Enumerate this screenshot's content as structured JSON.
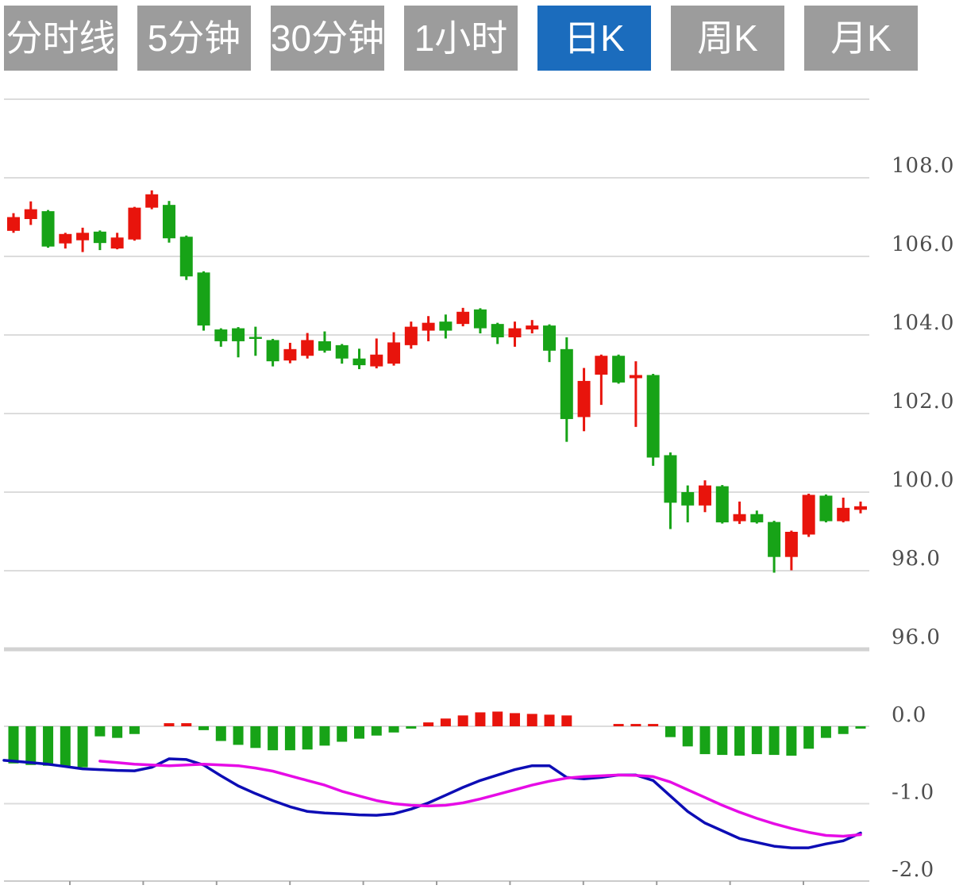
{
  "toolbar": {
    "tabs": [
      {
        "key": "timeshare-line",
        "label": "分时线",
        "active": false
      },
      {
        "key": "5-minute",
        "label": "5分钟",
        "active": false
      },
      {
        "key": "30-minute",
        "label": "30分钟",
        "active": false
      },
      {
        "key": "1-hour",
        "label": "1小时",
        "active": false
      },
      {
        "key": "daily-k",
        "label": "日K",
        "active": true
      },
      {
        "key": "weekly-k",
        "label": "周K",
        "active": false
      },
      {
        "key": "monthly-k",
        "label": "月K",
        "active": false
      }
    ]
  },
  "colors": {
    "up": "#e8140c",
    "down": "#17a317",
    "dif_line": "#0d0db5",
    "dea_line": "#e60ce6",
    "grid": "#dcdcdc",
    "grid_emphasis": "#d2d2d2",
    "axis_line": "#cbcbcb",
    "axis_tick": "#9a9a9a",
    "axis_text": "#4d4d4d",
    "tab_bg": "#9c9c9c",
    "tab_active_bg": "#1b6cbd",
    "tab_text": "#ffffff"
  },
  "chart_data": [
    {
      "type": "candlestick",
      "title": "",
      "legend_position": "none",
      "grid": true,
      "y_axis": {
        "side": "right",
        "range": [
          95.2,
          110.0
        ],
        "ticks": [
          {
            "value": 110,
            "label": ""
          },
          {
            "value": 108,
            "label": "108.0"
          },
          {
            "value": 106,
            "label": "106.0"
          },
          {
            "value": 104,
            "label": "104.0"
          },
          {
            "value": 102,
            "label": "102.0"
          },
          {
            "value": 100,
            "label": "100.0"
          },
          {
            "value": 98,
            "label": "98.0"
          },
          {
            "value": 96,
            "label": "96.0",
            "emphasis": true
          }
        ]
      },
      "color_convention": "chinese (red = up, green = down)",
      "candles_ohlc": [
        [
          106.65,
          107.1,
          106.6,
          107.0
        ],
        [
          106.95,
          107.4,
          106.8,
          107.2
        ],
        [
          107.15,
          107.18,
          106.22,
          106.25
        ],
        [
          106.33,
          106.6,
          106.2,
          106.57
        ],
        [
          106.41,
          106.73,
          106.11,
          106.6
        ],
        [
          106.63,
          106.66,
          106.16,
          106.34
        ],
        [
          106.2,
          106.6,
          106.18,
          106.48
        ],
        [
          106.43,
          107.26,
          106.4,
          107.24
        ],
        [
          107.24,
          107.68,
          107.2,
          107.58
        ],
        [
          107.31,
          107.41,
          106.35,
          106.46
        ],
        [
          106.5,
          106.53,
          105.4,
          105.49
        ],
        [
          105.59,
          105.62,
          104.11,
          104.24
        ],
        [
          104.14,
          104.17,
          103.7,
          103.84
        ],
        [
          104.17,
          104.2,
          103.43,
          103.84
        ],
        [
          103.95,
          104.21,
          103.47,
          103.92
        ],
        [
          103.87,
          103.9,
          103.2,
          103.33
        ],
        [
          103.35,
          103.8,
          103.28,
          103.64
        ],
        [
          103.47,
          104.05,
          103.4,
          103.87
        ],
        [
          103.84,
          104.09,
          103.55,
          103.6
        ],
        [
          103.74,
          103.77,
          103.27,
          103.4
        ],
        [
          103.4,
          103.65,
          103.13,
          103.23
        ],
        [
          103.2,
          103.91,
          103.15,
          103.5
        ],
        [
          103.27,
          104.07,
          103.22,
          103.81
        ],
        [
          103.74,
          104.34,
          103.65,
          104.21
        ],
        [
          104.11,
          104.48,
          103.84,
          104.31
        ],
        [
          104.34,
          104.52,
          103.91,
          104.11
        ],
        [
          104.28,
          104.69,
          104.22,
          104.59
        ],
        [
          104.65,
          104.68,
          104.04,
          104.17
        ],
        [
          104.28,
          104.31,
          103.77,
          103.94
        ],
        [
          103.94,
          104.34,
          103.7,
          104.17
        ],
        [
          104.14,
          104.38,
          104.04,
          104.24
        ],
        [
          104.24,
          104.27,
          103.31,
          103.6
        ],
        [
          103.64,
          103.94,
          101.28,
          101.86
        ],
        [
          101.91,
          103.16,
          101.55,
          102.83
        ],
        [
          102.99,
          103.5,
          102.22,
          103.47
        ],
        [
          103.47,
          103.5,
          102.76,
          102.79
        ],
        [
          102.9,
          103.33,
          101.66,
          102.98
        ],
        [
          102.98,
          103.01,
          100.67,
          100.88
        ],
        [
          100.94,
          101.01,
          99.06,
          99.73
        ],
        [
          100.0,
          100.17,
          99.23,
          99.66
        ],
        [
          99.66,
          100.3,
          99.49,
          100.17
        ],
        [
          100.15,
          100.18,
          99.2,
          99.23
        ],
        [
          99.26,
          99.76,
          99.19,
          99.44
        ],
        [
          99.44,
          99.53,
          99.2,
          99.23
        ],
        [
          99.24,
          99.27,
          97.95,
          98.35
        ],
        [
          98.35,
          99.02,
          98.01,
          98.99
        ],
        [
          98.92,
          99.96,
          98.86,
          99.93
        ],
        [
          99.91,
          99.94,
          99.23,
          99.26
        ],
        [
          99.26,
          99.86,
          99.23,
          99.6
        ],
        [
          99.55,
          99.76,
          99.46,
          99.64
        ]
      ]
    },
    {
      "type": "bar",
      "name": "MACD",
      "grid": true,
      "y_axis": {
        "side": "right",
        "range": [
          -2.0,
          0.25
        ],
        "ticks": [
          {
            "value": 0,
            "label": "0.0"
          },
          {
            "value": -1,
            "label": "-1.0"
          },
          {
            "value": -2,
            "label": "-2.0",
            "axis": true
          }
        ]
      },
      "histogram": [
        -0.48,
        -0.5,
        -0.51,
        -0.52,
        -0.53,
        -0.13,
        -0.15,
        -0.1,
        0,
        0.04,
        0.04,
        -0.05,
        -0.19,
        -0.24,
        -0.28,
        -0.31,
        -0.31,
        -0.3,
        -0.25,
        -0.2,
        -0.16,
        -0.12,
        -0.08,
        -0.03,
        0.05,
        0.1,
        0.14,
        0.18,
        0.19,
        0.17,
        0.16,
        0.15,
        0.14,
        0,
        0,
        0.03,
        0.03,
        0.03,
        -0.14,
        -0.26,
        -0.36,
        -0.37,
        -0.38,
        -0.36,
        -0.37,
        -0.38,
        -0.29,
        -0.15,
        -0.1,
        -0.03
      ],
      "series": [
        {
          "name": "DIF",
          "start_index": 0,
          "edge_value": -0.44,
          "values": [
            -0.45,
            -0.47,
            -0.49,
            -0.52,
            -0.55,
            -0.56,
            -0.57,
            -0.575,
            -0.53,
            -0.42,
            -0.43,
            -0.5,
            -0.64,
            -0.77,
            -0.87,
            -0.96,
            -1.04,
            -1.1,
            -1.12,
            -1.13,
            -1.145,
            -1.15,
            -1.13,
            -1.07,
            -0.99,
            -0.89,
            -0.79,
            -0.7,
            -0.63,
            -0.56,
            -0.51,
            -0.51,
            -0.66,
            -0.68,
            -0.66,
            -0.63,
            -0.63,
            -0.7,
            -0.9,
            -1.1,
            -1.25,
            -1.35,
            -1.45,
            -1.5,
            -1.55,
            -1.57,
            -1.57,
            -1.52,
            -1.48,
            -1.38
          ]
        },
        {
          "name": "DEA",
          "start_index": 5,
          "values": [
            -0.45,
            -0.47,
            -0.49,
            -0.5,
            -0.51,
            -0.5,
            -0.49,
            -0.5,
            -0.51,
            -0.54,
            -0.58,
            -0.64,
            -0.7,
            -0.76,
            -0.84,
            -0.9,
            -0.96,
            -1.0,
            -1.02,
            -1.03,
            -1.02,
            -0.99,
            -0.94,
            -0.88,
            -0.82,
            -0.76,
            -0.71,
            -0.67,
            -0.65,
            -0.64,
            -0.63,
            -0.635,
            -0.65,
            -0.72,
            -0.82,
            -0.92,
            -1.02,
            -1.11,
            -1.19,
            -1.26,
            -1.32,
            -1.37,
            -1.41,
            -1.42,
            -1.4
          ]
        }
      ]
    }
  ]
}
